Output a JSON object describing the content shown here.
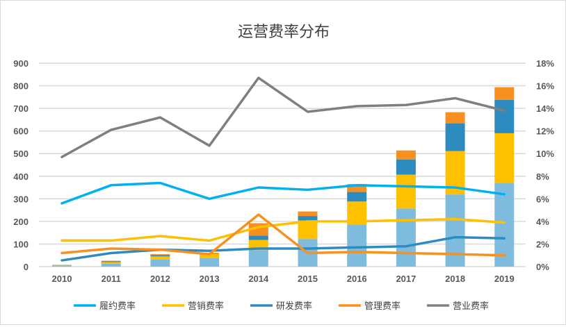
{
  "chart_data": {
    "type": "bar+line",
    "title": "运营费率分布",
    "categories": [
      "2010",
      "2011",
      "2012",
      "2013",
      "2014",
      "2015",
      "2016",
      "2017",
      "2018",
      "2019"
    ],
    "left_axis": {
      "ylim": [
        0,
        900
      ],
      "ticks": [
        "0",
        "100",
        "200",
        "300",
        "400",
        "500",
        "600",
        "700",
        "800",
        "900"
      ]
    },
    "right_axis": {
      "ylim": [
        0,
        18
      ],
      "ticks": [
        "0%",
        "2%",
        "4%",
        "6%",
        "8%",
        "10%",
        "12%",
        "14%",
        "16%",
        "18%"
      ]
    },
    "grid": true,
    "legend_position": "bottom",
    "bar_series": [
      {
        "color": "#7FBBDD",
        "values": [
          5,
          13,
          31,
          38,
          73,
          122,
          186,
          257,
          319,
          370
        ]
      },
      {
        "color": "#FFC000",
        "values": [
          1,
          7,
          14,
          18,
          45,
          82,
          102,
          150,
          192,
          220
        ]
      },
      {
        "color": "#2E8BC0",
        "values": [
          1,
          3,
          6,
          2,
          19,
          20,
          42,
          67,
          123,
          148
        ]
      },
      {
        "color": "#F79020",
        "values": [
          1,
          3,
          4,
          3,
          55,
          20,
          35,
          40,
          49,
          56
        ]
      }
    ],
    "line_series": [
      {
        "name": "履约费率",
        "color": "#00B0F0",
        "values": [
          5.6,
          7.2,
          7.4,
          6.0,
          7.0,
          6.8,
          7.2,
          7.1,
          7.0,
          6.4
        ]
      },
      {
        "name": "营销费率",
        "color": "#FFC000",
        "values": [
          2.3,
          2.3,
          2.7,
          2.3,
          3.5,
          4.0,
          4.0,
          4.1,
          4.2,
          3.9
        ]
      },
      {
        "name": "研发费率",
        "color": "#2E8BC0",
        "values": [
          0.55,
          1.2,
          1.5,
          1.4,
          1.6,
          1.6,
          1.7,
          1.8,
          2.6,
          2.5
        ]
      },
      {
        "name": "管理费率",
        "color": "#F79020",
        "values": [
          1.2,
          1.6,
          1.5,
          1.1,
          4.6,
          1.2,
          1.3,
          1.2,
          1.1,
          1.0
        ]
      },
      {
        "name": "营业费率",
        "color": "#7F7F7F",
        "values": [
          9.7,
          12.1,
          13.2,
          10.7,
          16.7,
          13.7,
          14.2,
          14.3,
          14.9,
          13.8
        ]
      }
    ]
  }
}
